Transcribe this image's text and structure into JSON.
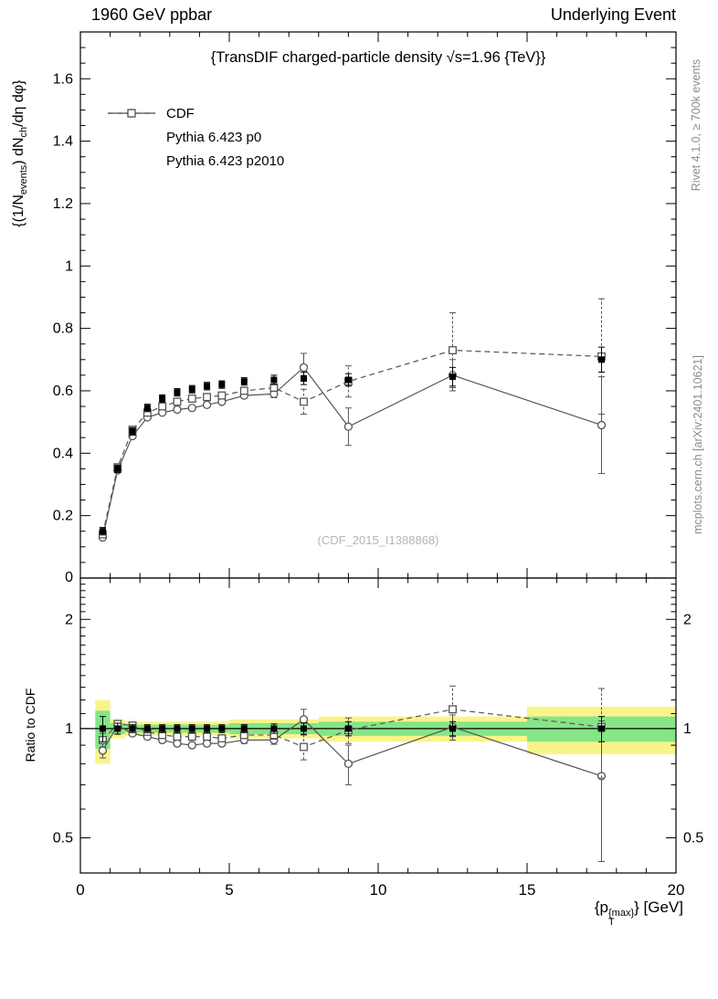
{
  "header": {
    "left": "1960 GeV ppbar",
    "right": "Underlying Event"
  },
  "side_notes": {
    "top_right": "Rivet 4.1.0, ≥ 700k events",
    "bottom_right": "mcplots.cern.ch [arXiv:2401.10621]"
  },
  "main_panel": {
    "title": "{TransDIF charged-particle density √s=1.96 {TeV}}",
    "watermark": "(CDF_2015_I1388868)",
    "ylabel_parts": {
      "p0": "{(1/N",
      "sub1": "events",
      "p1": ") dN",
      "sub2": "ch",
      "p2": "/dη dφ}"
    }
  },
  "ratio_panel": {
    "ylabel": "Ratio to CDF"
  },
  "xaxis": {
    "label_prefix": "{p",
    "label_sub": "T",
    "label_sup": "{max}",
    "label_suffix": "} [GeV]"
  },
  "colors": {
    "cdf": "#000000",
    "mc": "#555555",
    "band_yellow": "#f9f48a",
    "band_green": "#86e586",
    "frame": "#000000",
    "note_gray": "#8c8c8c",
    "watermark_gray": "#b5b5b5"
  },
  "chart_data": [
    {
      "type": "line",
      "panel": "main",
      "title": "{TransDIF charged-particle density √s=1.96 {TeV}}",
      "xlabel": "{p_T^{max}} [GeV]",
      "ylabel": "{(1/N_events) dN_ch/dη dφ}",
      "xlim": [
        0,
        20
      ],
      "ylim": [
        0,
        1.75
      ],
      "xticks": [
        0,
        5,
        10,
        15,
        20
      ],
      "yticks": [
        0,
        0.2,
        0.4,
        0.6,
        0.8,
        1,
        1.2,
        1.4,
        1.6
      ],
      "grid": false,
      "legend_position": "top-left",
      "x": [
        0.75,
        1.25,
        1.75,
        2.25,
        2.75,
        3.25,
        3.75,
        4.25,
        4.75,
        5.5,
        6.5,
        7.5,
        9,
        12.5,
        17.5
      ],
      "series": [
        {
          "name": "CDF",
          "marker": "filled-square",
          "line": "none",
          "color": "#000000",
          "values": [
            0.15,
            0.35,
            0.47,
            0.545,
            0.575,
            0.595,
            0.605,
            0.615,
            0.62,
            0.63,
            0.635,
            0.64,
            0.635,
            0.645,
            0.7
          ],
          "yerr": [
            0.012,
            0.012,
            0.012,
            0.012,
            0.012,
            0.012,
            0.012,
            0.012,
            0.012,
            0.012,
            0.015,
            0.02,
            0.02,
            0.03,
            0.04
          ]
        },
        {
          "name": "Pythia 6.423 p0",
          "marker": "open-circle",
          "line": "solid",
          "color": "#555555",
          "values": [
            0.13,
            0.345,
            0.455,
            0.515,
            0.53,
            0.54,
            0.545,
            0.555,
            0.565,
            0.585,
            0.59,
            0.675,
            0.485,
            0.65,
            0.49
          ],
          "yerr": [
            0.006,
            0.005,
            0.005,
            0.005,
            0.005,
            0.005,
            0.005,
            0.006,
            0.007,
            0.008,
            0.012,
            0.045,
            0.06,
            0.05,
            0.155
          ]
        },
        {
          "name": "Pythia 6.423 p2010",
          "marker": "open-square",
          "line": "dashed",
          "color": "#555555",
          "values": [
            0.14,
            0.355,
            0.475,
            0.53,
            0.55,
            0.565,
            0.575,
            0.58,
            0.585,
            0.6,
            0.61,
            0.565,
            0.63,
            0.73,
            0.71
          ],
          "yerr": [
            0.006,
            0.005,
            0.005,
            0.005,
            0.005,
            0.005,
            0.005,
            0.006,
            0.007,
            0.008,
            0.012,
            0.04,
            0.05,
            0.12,
            0.185
          ]
        }
      ]
    },
    {
      "type": "line",
      "panel": "ratio",
      "ylabel": "Ratio to CDF",
      "yscale": "log",
      "xlim": [
        0,
        20
      ],
      "ylim": [
        0.4,
        2.6
      ],
      "xticks": [
        0,
        5,
        10,
        15,
        20
      ],
      "yticks": [
        0.5,
        1,
        2
      ],
      "reference_line": 1,
      "x": [
        0.75,
        1.25,
        1.75,
        2.25,
        2.75,
        3.25,
        3.75,
        4.25,
        4.75,
        5.5,
        6.5,
        7.5,
        9,
        12.5,
        17.5
      ],
      "bands": [
        {
          "x0": 0.5,
          "x1": 1.0,
          "yellow": [
            0.8,
            1.2
          ],
          "green": [
            0.88,
            1.12
          ]
        },
        {
          "x0": 1.0,
          "x1": 1.5,
          "yellow": [
            0.94,
            1.06
          ],
          "green": [
            0.965,
            1.035
          ]
        },
        {
          "x0": 1.5,
          "x1": 5.0,
          "yellow": [
            0.955,
            1.045
          ],
          "green": [
            0.975,
            1.025
          ]
        },
        {
          "x0": 5.0,
          "x1": 8.0,
          "yellow": [
            0.94,
            1.06
          ],
          "green": [
            0.965,
            1.035
          ]
        },
        {
          "x0": 8.0,
          "x1": 15.0,
          "yellow": [
            0.92,
            1.08
          ],
          "green": [
            0.955,
            1.045
          ]
        },
        {
          "x0": 15.0,
          "x1": 20.0,
          "yellow": [
            0.85,
            1.15
          ],
          "green": [
            0.92,
            1.08
          ]
        }
      ],
      "series": [
        {
          "name": "CDF",
          "marker": "filled-square",
          "line": "none",
          "color": "#000000",
          "values": [
            1,
            1,
            1,
            1,
            1,
            1,
            1,
            1,
            1,
            1,
            1,
            1,
            1,
            1,
            1
          ],
          "yerr": [
            0.08,
            0.035,
            0.025,
            0.025,
            0.025,
            0.025,
            0.025,
            0.025,
            0.025,
            0.025,
            0.03,
            0.035,
            0.045,
            0.045,
            0.08
          ]
        },
        {
          "name": "Pythia 6.423 p0",
          "marker": "open-circle",
          "line": "solid",
          "color": "#555555",
          "values": [
            0.87,
            1.02,
            0.97,
            0.95,
            0.93,
            0.91,
            0.9,
            0.91,
            0.91,
            0.93,
            0.93,
            1.06,
            0.8,
            1.01,
            0.74
          ],
          "yerr": [
            0.04,
            0.02,
            0.015,
            0.015,
            0.015,
            0.015,
            0.015,
            0.015,
            0.015,
            0.02,
            0.025,
            0.07,
            0.1,
            0.08,
            0.31
          ]
        },
        {
          "name": "Pythia 6.423 p2010",
          "marker": "open-square",
          "line": "dashed",
          "color": "#555555",
          "values": [
            0.93,
            1.03,
            1.02,
            0.98,
            0.96,
            0.95,
            0.95,
            0.95,
            0.94,
            0.96,
            0.96,
            0.89,
            0.99,
            1.13,
            1.01
          ],
          "yerr": [
            0.04,
            0.02,
            0.015,
            0.015,
            0.015,
            0.015,
            0.015,
            0.015,
            0.015,
            0.02,
            0.025,
            0.07,
            0.08,
            0.18,
            0.28
          ]
        }
      ]
    }
  ]
}
